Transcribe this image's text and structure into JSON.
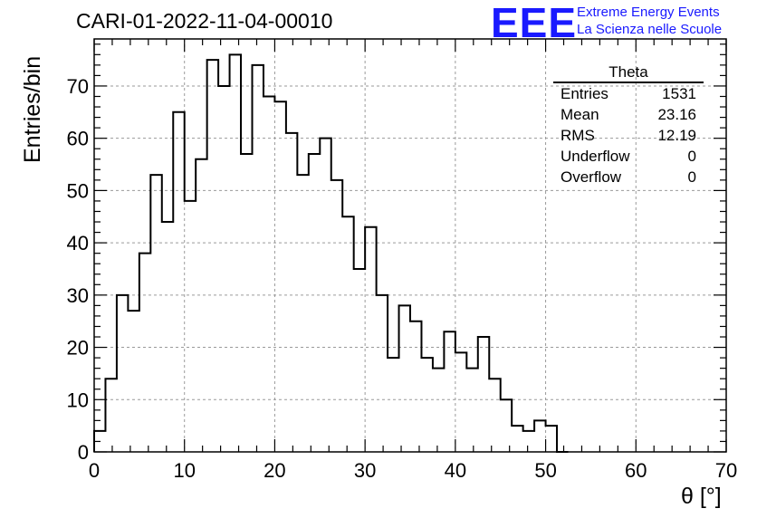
{
  "title": "CARI-01-2022-11-04-00010",
  "logo": {
    "mark": "EEE",
    "line1": "Extreme Energy Events",
    "line2": "La Scienza nelle Scuole",
    "color": "#1a1aff"
  },
  "stats": {
    "title": "Theta",
    "rows": [
      {
        "label": "Entries",
        "value": "1531"
      },
      {
        "label": "Mean",
        "value": "23.16"
      },
      {
        "label": "RMS",
        "value": "12.19"
      },
      {
        "label": "Underflow",
        "value": "0"
      },
      {
        "label": "Overflow",
        "value": "0"
      }
    ]
  },
  "chart_data": {
    "type": "bar",
    "title": "CARI-01-2022-11-04-00010",
    "xlabel": "θ [°]",
    "ylabel": "Entries/bin",
    "xlim": [
      0,
      70
    ],
    "ylim": [
      0,
      79
    ],
    "grid": true,
    "bin_width": 1.25,
    "x_start": 0,
    "values": [
      4,
      14,
      30,
      27,
      38,
      53,
      44,
      65,
      48,
      56,
      75,
      70,
      76,
      57,
      74,
      68,
      67,
      61,
      53,
      57,
      60,
      52,
      45,
      35,
      43,
      30,
      18,
      28,
      25,
      18,
      16,
      23,
      19,
      16,
      22,
      14,
      10,
      5,
      4,
      6,
      5,
      0
    ],
    "xticks": [
      0,
      10,
      20,
      30,
      40,
      50,
      60,
      70
    ],
    "yticks": [
      0,
      10,
      20,
      30,
      40,
      50,
      60,
      70
    ]
  }
}
